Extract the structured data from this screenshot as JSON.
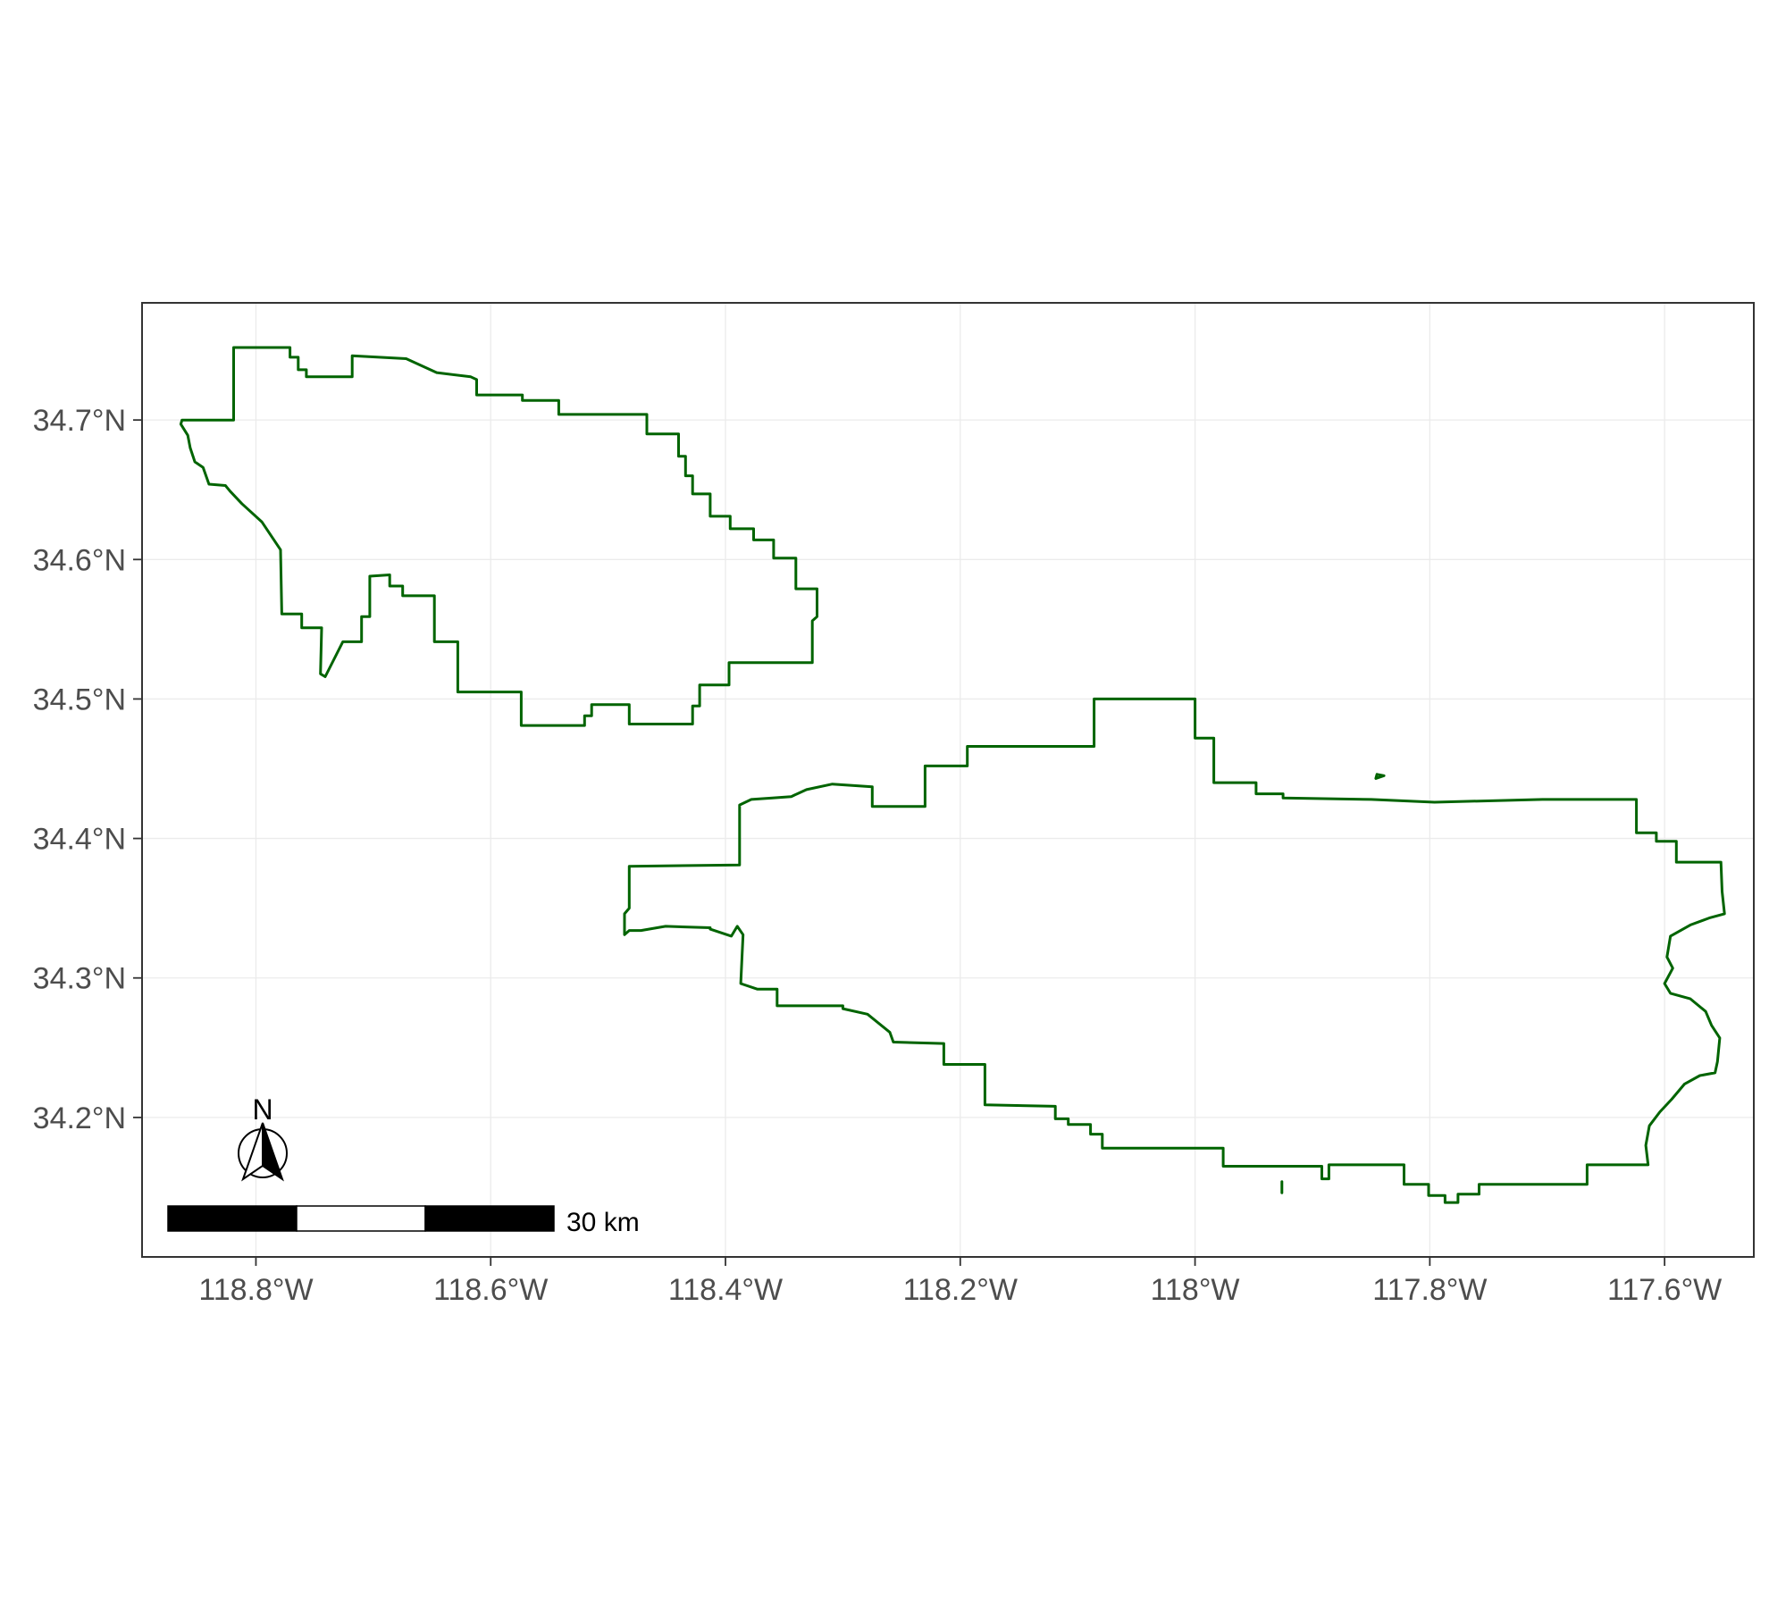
{
  "map": {
    "x_axis": {
      "ticks": [
        {
          "lon": -118.8,
          "label": "118.8°W"
        },
        {
          "lon": -118.6,
          "label": "118.6°W"
        },
        {
          "lon": -118.4,
          "label": "118.4°W"
        },
        {
          "lon": -118.2,
          "label": "118.2°W"
        },
        {
          "lon": -118.0,
          "label": "118°W"
        },
        {
          "lon": -117.8,
          "label": "117.8°W"
        },
        {
          "lon": -117.6,
          "label": "117.6°W"
        }
      ],
      "range": [
        -118.897,
        -117.524
      ]
    },
    "y_axis": {
      "ticks": [
        {
          "lat": 34.7,
          "label": "34.7°N"
        },
        {
          "lat": 34.6,
          "label": "34.6°N"
        },
        {
          "lat": 34.5,
          "label": "34.5°N"
        },
        {
          "lat": 34.4,
          "label": "34.4°N"
        },
        {
          "lat": 34.3,
          "label": "34.3°N"
        },
        {
          "lat": 34.2,
          "label": "34.2°N"
        }
      ],
      "range": [
        34.1,
        34.784
      ]
    },
    "grid": true,
    "boundary_color": "#006400",
    "regions": [
      {
        "points": [
          [
            -118.798,
            34.752
          ],
          [
            -118.771,
            34.752
          ],
          [
            -118.771,
            34.745
          ],
          [
            -118.764,
            34.745
          ],
          [
            -118.764,
            34.736
          ],
          [
            -118.757,
            34.736
          ],
          [
            -118.757,
            34.731
          ],
          [
            -118.718,
            34.731
          ],
          [
            -118.718,
            34.746
          ],
          [
            -118.672,
            34.744
          ],
          [
            -118.646,
            34.734
          ],
          [
            -118.617,
            34.731
          ],
          [
            -118.612,
            34.729
          ],
          [
            -118.612,
            34.718
          ],
          [
            -118.573,
            34.718
          ],
          [
            -118.573,
            34.714
          ],
          [
            -118.542,
            34.714
          ],
          [
            -118.542,
            34.704
          ],
          [
            -118.467,
            34.704
          ],
          [
            -118.467,
            34.69
          ],
          [
            -118.44,
            34.69
          ],
          [
            -118.44,
            34.674
          ],
          [
            -118.434,
            34.674
          ],
          [
            -118.434,
            34.66
          ],
          [
            -118.428,
            34.66
          ],
          [
            -118.428,
            34.647
          ],
          [
            -118.413,
            34.647
          ],
          [
            -118.413,
            34.631
          ],
          [
            -118.396,
            34.631
          ],
          [
            -118.396,
            34.622
          ],
          [
            -118.376,
            34.622
          ],
          [
            -118.376,
            34.614
          ],
          [
            -118.359,
            34.614
          ],
          [
            -118.359,
            34.601
          ],
          [
            -118.34,
            34.601
          ],
          [
            -118.34,
            34.579
          ],
          [
            -118.322,
            34.579
          ],
          [
            -118.322,
            34.559
          ],
          [
            -118.326,
            34.556
          ],
          [
            -118.326,
            34.526
          ],
          [
            -118.397,
            34.526
          ],
          [
            -118.397,
            34.51
          ],
          [
            -118.422,
            34.51
          ],
          [
            -118.422,
            34.495
          ],
          [
            -118.428,
            34.495
          ],
          [
            -118.428,
            34.482
          ],
          [
            -118.482,
            34.482
          ],
          [
            -118.482,
            34.496
          ],
          [
            -118.514,
            34.496
          ],
          [
            -118.514,
            34.488
          ],
          [
            -118.52,
            34.488
          ],
          [
            -118.52,
            34.481
          ],
          [
            -118.574,
            34.481
          ],
          [
            -118.574,
            34.505
          ],
          [
            -118.628,
            34.505
          ],
          [
            -118.628,
            34.541
          ],
          [
            -118.648,
            34.541
          ],
          [
            -118.648,
            34.574
          ],
          [
            -118.675,
            34.574
          ],
          [
            -118.675,
            34.581
          ],
          [
            -118.686,
            34.581
          ],
          [
            -118.686,
            34.589
          ],
          [
            -118.703,
            34.588
          ],
          [
            -118.703,
            34.559
          ],
          [
            -118.71,
            34.559
          ],
          [
            -118.71,
            34.541
          ],
          [
            -118.726,
            34.541
          ],
          [
            -118.741,
            34.516
          ],
          [
            -118.745,
            34.518
          ],
          [
            -118.744,
            34.551
          ],
          [
            -118.761,
            34.551
          ],
          [
            -118.761,
            34.561
          ],
          [
            -118.778,
            34.561
          ],
          [
            -118.779,
            34.607
          ],
          [
            -118.795,
            34.627
          ],
          [
            -118.812,
            34.64
          ],
          [
            -118.822,
            34.649
          ],
          [
            -118.826,
            34.653
          ],
          [
            -118.84,
            34.654
          ],
          [
            -118.845,
            34.666
          ],
          [
            -118.852,
            34.67
          ],
          [
            -118.856,
            34.68
          ],
          [
            -118.858,
            34.689
          ],
          [
            -118.864,
            34.697
          ],
          [
            -118.863,
            34.7
          ],
          [
            -118.819,
            34.7
          ],
          [
            -118.819,
            34.752
          ],
          [
            -118.798,
            34.752
          ]
        ]
      },
      {
        "points": [
          [
            -118.086,
            34.5
          ],
          [
            -118.0,
            34.5
          ],
          [
            -118.0,
            34.472
          ],
          [
            -117.984,
            34.472
          ],
          [
            -117.984,
            34.44
          ],
          [
            -117.948,
            34.44
          ],
          [
            -117.948,
            34.432
          ],
          [
            -117.925,
            34.432
          ],
          [
            -117.925,
            34.429
          ],
          [
            -117.85,
            34.428
          ],
          [
            -117.796,
            34.426
          ],
          [
            -117.704,
            34.428
          ],
          [
            -117.624,
            34.428
          ],
          [
            -117.624,
            34.404
          ],
          [
            -117.607,
            34.404
          ],
          [
            -117.607,
            34.398
          ],
          [
            -117.59,
            34.398
          ],
          [
            -117.59,
            34.383
          ],
          [
            -117.552,
            34.383
          ],
          [
            -117.551,
            34.362
          ],
          [
            -117.549,
            34.346
          ],
          [
            -117.562,
            34.343
          ],
          [
            -117.578,
            34.338
          ],
          [
            -117.595,
            34.33
          ],
          [
            -117.598,
            34.315
          ],
          [
            -117.593,
            34.307
          ],
          [
            -117.6,
            34.296
          ],
          [
            -117.595,
            34.289
          ],
          [
            -117.578,
            34.285
          ],
          [
            -117.565,
            34.276
          ],
          [
            -117.56,
            34.266
          ],
          [
            -117.553,
            34.257
          ],
          [
            -117.555,
            34.24
          ],
          [
            -117.557,
            34.232
          ],
          [
            -117.57,
            34.23
          ],
          [
            -117.583,
            34.224
          ],
          [
            -117.594,
            34.213
          ],
          [
            -117.604,
            34.204
          ],
          [
            -117.613,
            34.194
          ],
          [
            -117.616,
            34.18
          ],
          [
            -117.614,
            34.166
          ],
          [
            -117.666,
            34.166
          ],
          [
            -117.666,
            34.152
          ],
          [
            -117.758,
            34.152
          ],
          [
            -117.758,
            34.145
          ],
          [
            -117.776,
            34.145
          ],
          [
            -117.776,
            34.139
          ],
          [
            -117.787,
            34.139
          ],
          [
            -117.787,
            34.144
          ],
          [
            -117.801,
            34.144
          ],
          [
            -117.801,
            34.152
          ],
          [
            -117.822,
            34.152
          ],
          [
            -117.822,
            34.166
          ],
          [
            -117.886,
            34.166
          ],
          [
            -117.886,
            34.156
          ],
          [
            -117.892,
            34.156
          ],
          [
            -117.892,
            34.165
          ],
          [
            -117.976,
            34.165
          ],
          [
            -117.976,
            34.178
          ],
          [
            -118.079,
            34.178
          ],
          [
            -118.079,
            34.188
          ],
          [
            -118.089,
            34.188
          ],
          [
            -118.089,
            34.195
          ],
          [
            -118.108,
            34.195
          ],
          [
            -118.108,
            34.199
          ],
          [
            -118.119,
            34.199
          ],
          [
            -118.119,
            34.208
          ],
          [
            -118.179,
            34.209
          ],
          [
            -118.179,
            34.238
          ],
          [
            -118.214,
            34.238
          ],
          [
            -118.214,
            34.253
          ],
          [
            -118.257,
            34.254
          ],
          [
            -118.26,
            34.261
          ],
          [
            -118.279,
            34.274
          ],
          [
            -118.3,
            34.278
          ],
          [
            -118.3,
            34.28
          ],
          [
            -118.356,
            34.28
          ],
          [
            -118.356,
            34.292
          ],
          [
            -118.373,
            34.292
          ],
          [
            -118.387,
            34.296
          ],
          [
            -118.385,
            34.331
          ],
          [
            -118.39,
            34.337
          ],
          [
            -118.395,
            34.33
          ],
          [
            -118.413,
            34.335
          ],
          [
            -118.413,
            34.336
          ],
          [
            -118.451,
            34.337
          ],
          [
            -118.472,
            34.334
          ],
          [
            -118.482,
            34.334
          ],
          [
            -118.486,
            34.331
          ],
          [
            -118.486,
            34.346
          ],
          [
            -118.482,
            34.35
          ],
          [
            -118.482,
            34.38
          ],
          [
            -118.388,
            34.381
          ],
          [
            -118.388,
            34.424
          ],
          [
            -118.378,
            34.428
          ],
          [
            -118.36,
            34.429
          ],
          [
            -118.344,
            34.43
          ],
          [
            -118.331,
            34.435
          ],
          [
            -118.309,
            34.439
          ],
          [
            -118.275,
            34.437
          ],
          [
            -118.275,
            34.423
          ],
          [
            -118.23,
            34.423
          ],
          [
            -118.23,
            34.452
          ],
          [
            -118.194,
            34.452
          ],
          [
            -118.194,
            34.466
          ],
          [
            -118.086,
            34.466
          ],
          [
            -118.086,
            34.5
          ]
        ]
      },
      {
        "points": [
          [
            -117.845,
            34.446
          ],
          [
            -117.839,
            34.445
          ],
          [
            -117.846,
            34.443
          ],
          [
            -117.845,
            34.446
          ]
        ]
      },
      {
        "points": [
          [
            -117.926,
            34.154
          ],
          [
            -117.926,
            34.146
          ]
        ]
      }
    ],
    "north_arrow": {
      "label": "N"
    },
    "scale_bar": {
      "label": "30 km",
      "segments": 3,
      "colors": [
        "#000000",
        "#ffffff",
        "#000000"
      ]
    }
  }
}
